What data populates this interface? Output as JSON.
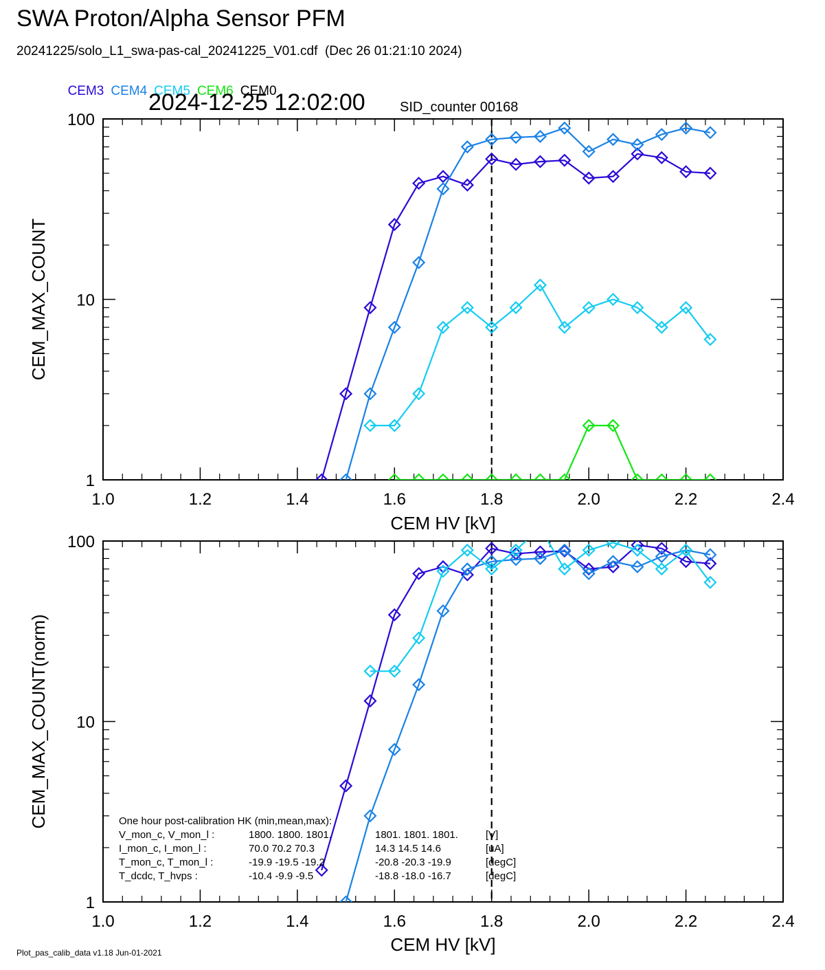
{
  "header": {
    "title": "SWA Proton/Alpha Sensor PFM",
    "subtitle": "20241225/solo_L1_swa-pas-cal_20241225_V01.cdf  (Dec 26 01:21:10 2024)",
    "datetime": "2024-12-25 12:02:00",
    "sid_counter": "SID_counter 00168"
  },
  "legend": [
    {
      "label": "CEM3",
      "color": "#2a0ad6"
    },
    {
      "label": "CEM4",
      "color": "#1a82e6"
    },
    {
      "label": "CEM5",
      "color": "#14ccf0"
    },
    {
      "label": "CEM6",
      "color": "#14e614"
    },
    {
      "label": "CEM0",
      "color": "#000000"
    }
  ],
  "footer": "Plot_pas_calib_data v1.18 Jun-01-2021",
  "chart_data": [
    {
      "type": "line",
      "title": "",
      "xlabel": "CEM HV [kV]",
      "ylabel": "CEM_MAX_COUNT",
      "xlim": [
        1.0,
        2.4
      ],
      "ylim": [
        1,
        100
      ],
      "yscale": "log",
      "xticks": [
        "1.0",
        "1.2",
        "1.4",
        "1.6",
        "1.8",
        "2.0",
        "2.2",
        "2.4"
      ],
      "yticks": [
        "1",
        "10",
        "100"
      ],
      "vline": 1.8,
      "series": [
        {
          "name": "CEM3",
          "color": "#2a0ad6",
          "x": [
            1.45,
            1.5,
            1.55,
            1.6,
            1.65,
            1.7,
            1.75,
            1.8,
            1.85,
            1.9,
            1.95,
            2.0,
            2.05,
            2.1,
            2.15,
            2.2,
            2.25
          ],
          "y": [
            1,
            3,
            9,
            26,
            44,
            48,
            43,
            60,
            56,
            58,
            59,
            47,
            48,
            64,
            61,
            51,
            50
          ]
        },
        {
          "name": "CEM4",
          "color": "#1a82e6",
          "x": [
            1.5,
            1.55,
            1.6,
            1.65,
            1.7,
            1.75,
            1.8,
            1.85,
            1.9,
            1.95,
            2.0,
            2.05,
            2.1,
            2.15,
            2.2,
            2.25
          ],
          "y": [
            1,
            3,
            7,
            16,
            41,
            70,
            77,
            79,
            80,
            89,
            66,
            77,
            72,
            82,
            89,
            84
          ]
        },
        {
          "name": "CEM5",
          "color": "#14ccf0",
          "x": [
            1.55,
            1.6,
            1.65,
            1.7,
            1.75,
            1.8,
            1.85,
            1.9,
            1.95,
            2.0,
            2.05,
            2.1,
            2.15,
            2.2,
            2.25
          ],
          "y": [
            2,
            2,
            3,
            7,
            9,
            7,
            9,
            12,
            7,
            9,
            10,
            9,
            7,
            9,
            6
          ]
        },
        {
          "name": "CEM6",
          "color": "#14e614",
          "x": [
            1.6,
            1.65,
            1.7,
            1.75,
            1.8,
            1.85,
            1.9,
            1.95,
            2.0,
            2.05,
            2.1,
            2.15,
            2.2,
            2.25
          ],
          "y": [
            1,
            1,
            1,
            1,
            1,
            1,
            1,
            1,
            2,
            2,
            1,
            1,
            1,
            1
          ]
        }
      ]
    },
    {
      "type": "line",
      "title": "",
      "xlabel": "CEM HV [kV]",
      "ylabel": "CEM_MAX_COUNT(norm)",
      "xlim": [
        1.0,
        2.4
      ],
      "ylim": [
        1,
        100
      ],
      "yscale": "log",
      "xticks": [
        "1.0",
        "1.2",
        "1.4",
        "1.6",
        "1.8",
        "2.0",
        "2.2",
        "2.4"
      ],
      "yticks": [
        "1",
        "10",
        "100"
      ],
      "vline": 1.8,
      "series": [
        {
          "name": "CEM3",
          "color": "#2a0ad6",
          "x": [
            1.45,
            1.5,
            1.55,
            1.6,
            1.65,
            1.7,
            1.75,
            1.8,
            1.85,
            1.9,
            1.95,
            2.0,
            2.05,
            2.1,
            2.15,
            2.2,
            2.25
          ],
          "y": [
            1.5,
            4.4,
            13,
            39,
            66,
            72,
            65,
            91,
            85,
            87,
            88,
            70,
            72,
            95,
            91,
            77,
            75
          ]
        },
        {
          "name": "CEM4",
          "color": "#1a82e6",
          "x": [
            1.5,
            1.55,
            1.6,
            1.65,
            1.7,
            1.75,
            1.8,
            1.85,
            1.9,
            1.95,
            2.0,
            2.05,
            2.1,
            2.15,
            2.2,
            2.25
          ],
          "y": [
            1,
            3,
            7,
            16,
            41,
            70,
            77,
            79,
            80,
            89,
            66,
            77,
            72,
            82,
            89,
            84
          ]
        },
        {
          "name": "CEM5",
          "color": "#14ccf0",
          "x": [
            1.55,
            1.6,
            1.65,
            1.7,
            1.75,
            1.8,
            1.85,
            1.9,
            1.95,
            2.0,
            2.05,
            2.1,
            2.15,
            2.2,
            2.25
          ],
          "y": [
            19,
            19,
            29,
            68,
            89,
            70,
            89,
            118,
            70,
            89,
            98,
            89,
            70,
            89,
            59
          ]
        }
      ]
    }
  ],
  "hk_table": {
    "title": "One hour post-calibration HK (min,mean,max):",
    "rows": [
      {
        "label": "V_mon_c, V_mon_l :",
        "c": "1800.  1800.  1801.",
        "l": "1801.  1801.  1801.",
        "unit": "[V]"
      },
      {
        "label": "I_mon_c,  I_mon_l :",
        "c": "70.0   70.2   70.3",
        "l": "14.3   14.5   14.6",
        "unit": "[uA]"
      },
      {
        "label": "T_mon_c, T_mon_l :",
        "c": "-19.9  -19.5  -19.2",
        "l": "-20.8  -20.3  -19.9",
        "unit": "[degC]"
      },
      {
        "label": "T_dcdc,    T_hvps :",
        "c": "-10.4   -9.9   -9.5",
        "l": "-18.8  -18.0  -16.7",
        "unit": "[degC]"
      }
    ]
  }
}
